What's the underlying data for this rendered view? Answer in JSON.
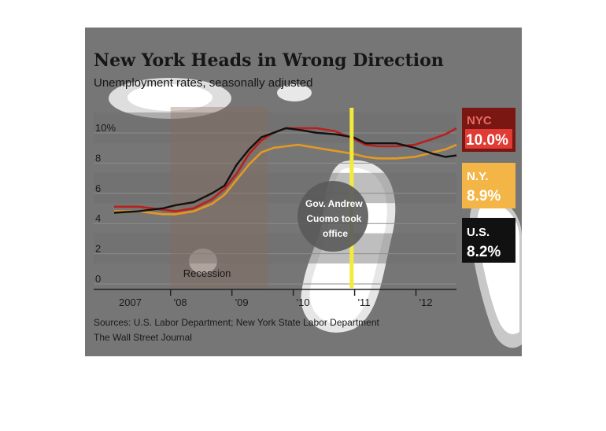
{
  "chart_data": {
    "type": "line",
    "title": "New York Heads in Wrong Direction",
    "subtitle": "Unemployment rates, seasonally adjusted",
    "y_ticks": [
      "10%",
      "8",
      "6",
      "4",
      "2",
      "0"
    ],
    "ylim": [
      0,
      10.5
    ],
    "x_ticks": [
      "2007",
      "'08",
      "'09",
      "'10",
      "'11",
      "'12"
    ],
    "xlim": [
      2007.0,
      2012.58
    ],
    "grid": true,
    "recession": {
      "label": "Recession",
      "start": 2007.92,
      "end": 2009.5
    },
    "annotation": {
      "text": [
        "Gov. Andrew",
        "Cuomo took",
        "office"
      ],
      "x": 2011.0
    },
    "source": "Sources: U.S. Labor Department; New York State Labor Department",
    "credit": "The Wall Street Journal",
    "colors": {
      "nyc": "#b8211f",
      "ny": "#e39a22",
      "us": "#111111",
      "annotation_line": "#f4ea3a"
    },
    "series": [
      {
        "name": "NYC",
        "label": "10.0%",
        "color": "#b8211f",
        "x": [
          2007.0,
          2007.4,
          2007.8,
          2008.0,
          2008.3,
          2008.6,
          2008.8,
          2009.0,
          2009.2,
          2009.4,
          2009.6,
          2009.8,
          2010.0,
          2010.3,
          2010.6,
          2010.9,
          2011.1,
          2011.3,
          2011.6,
          2011.9,
          2012.2,
          2012.4,
          2012.58
        ],
        "values": [
          4.8,
          4.8,
          4.6,
          4.5,
          4.7,
          5.3,
          6.0,
          7.0,
          8.3,
          9.2,
          9.7,
          10.0,
          10.0,
          10.0,
          9.8,
          9.3,
          8.9,
          8.8,
          8.8,
          8.9,
          9.3,
          9.6,
          10.0
        ]
      },
      {
        "name": "N.Y.",
        "label": "8.9%",
        "color": "#e39a22",
        "x": [
          2007.0,
          2007.4,
          2007.8,
          2008.0,
          2008.3,
          2008.6,
          2008.8,
          2009.0,
          2009.2,
          2009.4,
          2009.6,
          2009.8,
          2010.0,
          2010.3,
          2010.6,
          2010.9,
          2011.1,
          2011.3,
          2011.6,
          2011.9,
          2012.2,
          2012.4,
          2012.58
        ],
        "values": [
          4.5,
          4.5,
          4.3,
          4.3,
          4.5,
          5.0,
          5.6,
          6.6,
          7.6,
          8.4,
          8.7,
          8.8,
          8.9,
          8.7,
          8.5,
          8.3,
          8.1,
          8.0,
          8.0,
          8.1,
          8.4,
          8.6,
          8.9
        ]
      },
      {
        "name": "U.S.",
        "label": "8.2%",
        "color": "#111111",
        "x": [
          2007.0,
          2007.4,
          2007.8,
          2008.0,
          2008.3,
          2008.6,
          2008.8,
          2009.0,
          2009.2,
          2009.4,
          2009.6,
          2009.8,
          2010.0,
          2010.3,
          2010.6,
          2010.9,
          2011.1,
          2011.3,
          2011.6,
          2011.9,
          2012.2,
          2012.4,
          2012.58
        ],
        "values": [
          4.4,
          4.5,
          4.7,
          4.9,
          5.1,
          5.7,
          6.2,
          7.6,
          8.6,
          9.4,
          9.7,
          10.0,
          9.9,
          9.7,
          9.6,
          9.4,
          9.0,
          9.0,
          9.0,
          8.7,
          8.3,
          8.1,
          8.2
        ]
      }
    ]
  }
}
